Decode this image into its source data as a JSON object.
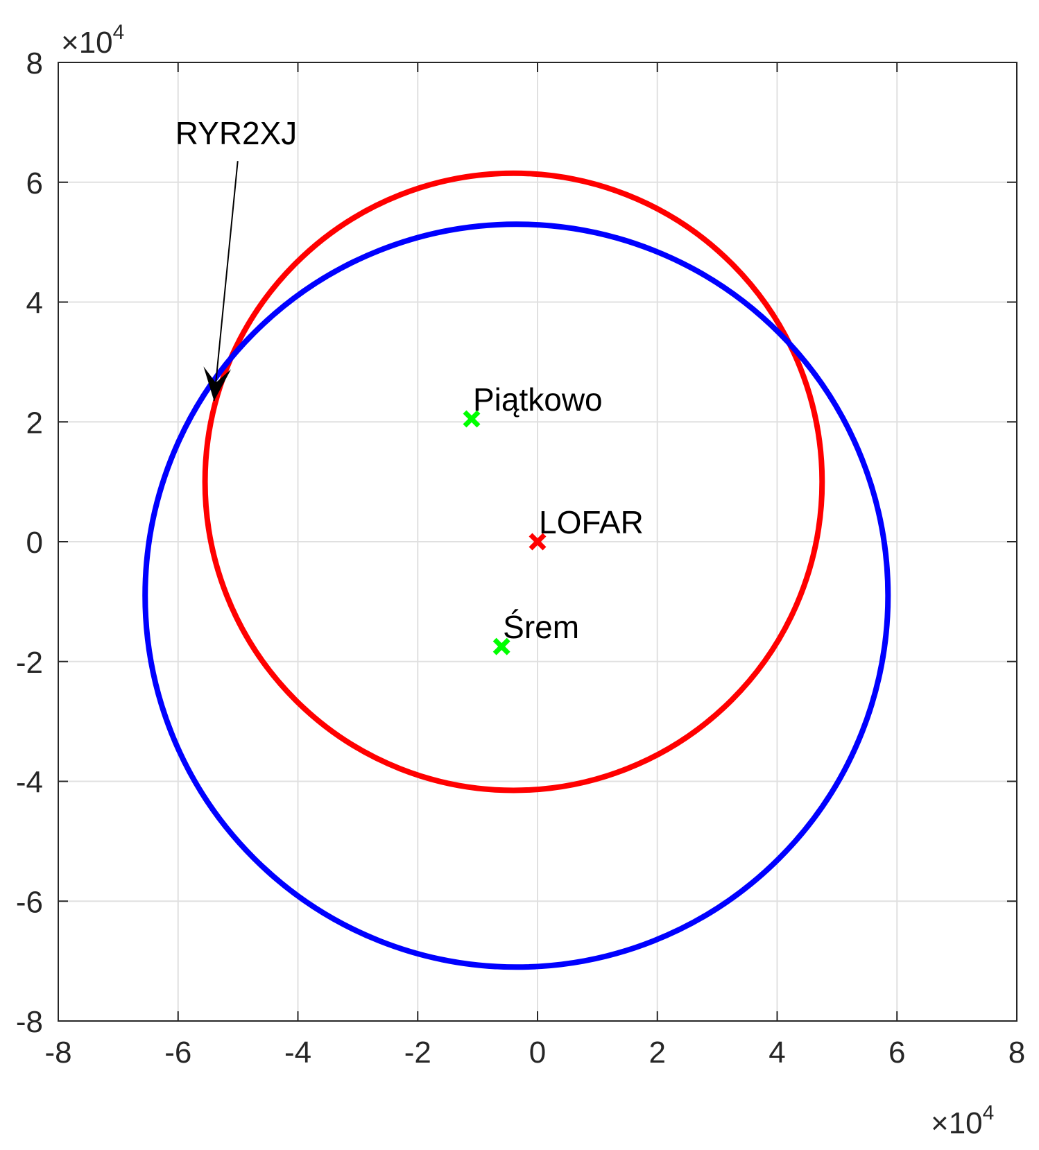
{
  "chart_data": {
    "type": "line",
    "xlim": [
      -8,
      8
    ],
    "ylim": [
      -8,
      8
    ],
    "x_ticks": [
      "-8",
      "-6",
      "-4",
      "-2",
      "0",
      "2",
      "4",
      "6",
      "8"
    ],
    "y_ticks": [
      "-8",
      "-6",
      "-4",
      "-2",
      "0",
      "2",
      "4",
      "6",
      "8"
    ],
    "x_multiplier": {
      "base": "×10",
      "exponent": "4"
    },
    "y_multiplier": {
      "base": "×10",
      "exponent": "4"
    },
    "grid": true,
    "series": [
      {
        "color": "#ff0000",
        "shape": "ellipse",
        "cx": -0.4,
        "cy": 1.0,
        "rx": 5.15,
        "ry": 5.15,
        "width": 8
      },
      {
        "color": "#0000ff",
        "shape": "ellipse",
        "cx": -0.35,
        "cy": -0.9,
        "rx": 6.2,
        "ry": 6.2,
        "width": 8
      }
    ],
    "points": [
      {
        "label": "Piątkowo",
        "x": -1.1,
        "y": 2.05,
        "color": "#00ff00"
      },
      {
        "label": "LOFAR",
        "x": 0.0,
        "y": 0.0,
        "color": "#ff0000"
      },
      {
        "label": "Śrem",
        "x": -0.6,
        "y": -1.75,
        "color": "#00ff00"
      }
    ],
    "annotations": [
      {
        "text": "RYR2XJ",
        "arrow_from": [
          -6.0,
          6.4
        ],
        "arrow_to": [
          -5.4,
          2.35
        ]
      }
    ]
  }
}
